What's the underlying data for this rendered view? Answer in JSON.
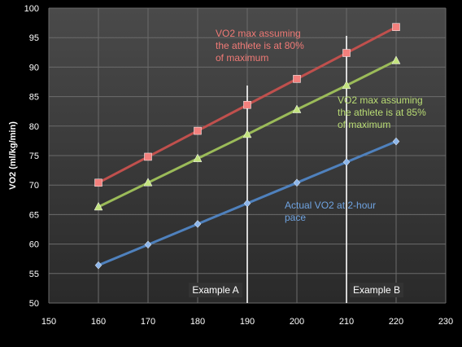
{
  "chart_data": {
    "type": "line",
    "ylabel": "VO2 (ml/kg/min)",
    "xlim": [
      150,
      230
    ],
    "ylim": [
      50,
      100
    ],
    "xticks": [
      150,
      160,
      170,
      180,
      190,
      200,
      210,
      220,
      230
    ],
    "yticks": [
      50,
      55,
      60,
      65,
      70,
      75,
      80,
      85,
      90,
      95,
      100
    ],
    "grid": true,
    "series": [
      {
        "name": "VO2 max assuming the athlete is at 80% of maximum",
        "label_lines": [
          "VO2 max assuming",
          "the athlete is at 80%",
          "of maximum"
        ],
        "color": "#c0504d",
        "marker_color": "#f3807d",
        "marker": "square",
        "x": [
          160,
          170,
          180,
          190,
          200,
          210,
          220
        ],
        "values": [
          70.4,
          74.8,
          79.2,
          83.6,
          88.0,
          92.4,
          96.8
        ]
      },
      {
        "name": "VO2 max assuming the athlete is at 85% of maximum",
        "label_lines": [
          "VO2 max assuming",
          "the athlete is at 85%",
          "of maximum"
        ],
        "color": "#9bbb59",
        "marker_color": "#c3e37f",
        "marker": "triangle",
        "x": [
          160,
          170,
          180,
          190,
          200,
          210,
          220
        ],
        "values": [
          66.3,
          70.4,
          74.5,
          78.6,
          82.8,
          86.9,
          91.1
        ]
      },
      {
        "name": "Actual VO2 at 2-hour pace",
        "label_lines": [
          "Actual VO2 at 2-hour",
          "pace"
        ],
        "color": "#4f81bd",
        "marker_color": "#8fb7ea",
        "marker": "diamond",
        "x": [
          160,
          170,
          180,
          190,
          200,
          210,
          220
        ],
        "values": [
          56.4,
          59.9,
          63.4,
          66.9,
          70.4,
          73.9,
          77.4
        ]
      }
    ],
    "annotations": [
      {
        "text": "Example A",
        "x": 190
      },
      {
        "text": "Example B",
        "x": 210
      }
    ]
  }
}
